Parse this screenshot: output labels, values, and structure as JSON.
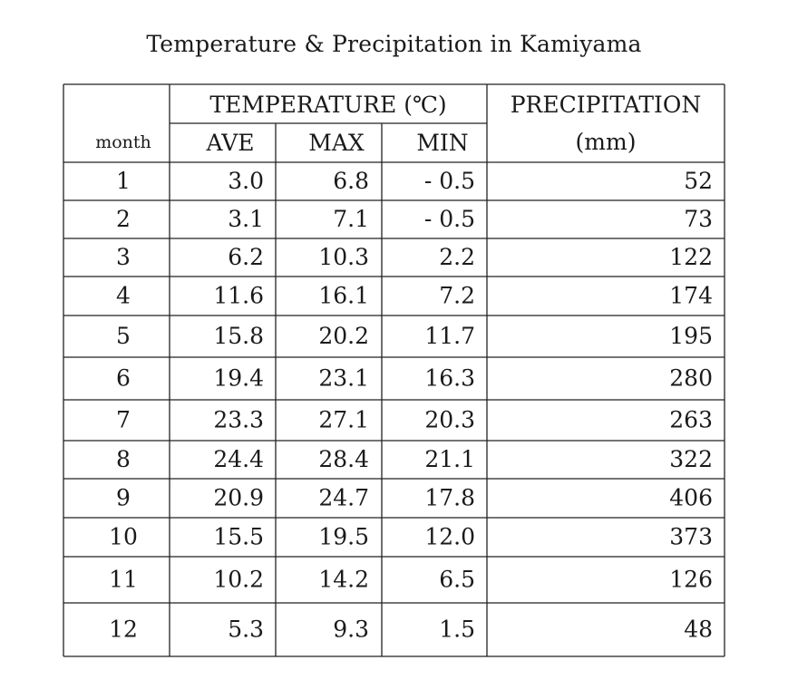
{
  "chart_data": {
    "type": "table",
    "title": "Temperature & Precipitation in Kamiyama",
    "header": {
      "month": "month",
      "temperature_group": "TEMPERATURE (℃)",
      "ave": "AVE",
      "max": "MAX",
      "min": "MIN",
      "precipitation_line1": "PRECIPITATION",
      "precipitation_line2": "(mm)"
    },
    "rows": [
      {
        "month": "1",
        "ave": "3.0",
        "max": "6.8",
        "min": "- 0.5",
        "precip": "52"
      },
      {
        "month": "2",
        "ave": "3.1",
        "max": "7.1",
        "min": "- 0.5",
        "precip": "73"
      },
      {
        "month": "3",
        "ave": "6.2",
        "max": "10.3",
        "min": "2.2",
        "precip": "122"
      },
      {
        "month": "4",
        "ave": "11.6",
        "max": "16.1",
        "min": "7.2",
        "precip": "174"
      },
      {
        "month": "5",
        "ave": "15.8",
        "max": "20.2",
        "min": "11.7",
        "precip": "195"
      },
      {
        "month": "6",
        "ave": "19.4",
        "max": "23.1",
        "min": "16.3",
        "precip": "280"
      },
      {
        "month": "7",
        "ave": "23.3",
        "max": "27.1",
        "min": "20.3",
        "precip": "263"
      },
      {
        "month": "8",
        "ave": "24.4",
        "max": "28.4",
        "min": "21.1",
        "precip": "322"
      },
      {
        "month": "9",
        "ave": "20.9",
        "max": "24.7",
        "min": "17.8",
        "precip": "406"
      },
      {
        "month": "10",
        "ave": "15.5",
        "max": "19.5",
        "min": "12.0",
        "precip": "373"
      },
      {
        "month": "11",
        "ave": "10.2",
        "max": "14.2",
        "min": "6.5",
        "precip": "126"
      },
      {
        "month": "12",
        "ave": "5.3",
        "max": "9.3",
        "min": "1.5",
        "precip": "48"
      }
    ]
  }
}
